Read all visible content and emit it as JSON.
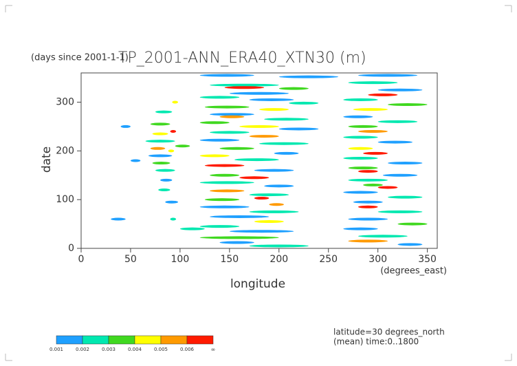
{
  "chart_data": {
    "type": "contourf",
    "title": "TP_2001-ANN_ERA40_XTN30 (m)",
    "time_origin": "(days since 2001-1-1)",
    "xlabel": "longitude",
    "ylabel": "date",
    "x_unit": "(degrees_east)",
    "xlim": [
      0,
      360
    ],
    "ylim": [
      0,
      360
    ],
    "xticks": [
      0,
      50,
      100,
      150,
      200,
      250,
      300,
      350
    ],
    "yticks": [
      0,
      100,
      200,
      300
    ],
    "levels": [
      0.001,
      0.002,
      0.003,
      0.004,
      0.005,
      0.006
    ],
    "level_top_label": "∞",
    "colors": [
      "#1fa0ff",
      "#00e8b0",
      "#40d820",
      "#ffff00",
      "#ff9a00",
      "#ff1a00"
    ],
    "notes": [
      "latitude=30 degrees_north",
      "(mean) time:0..1800"
    ],
    "streaks": [
      [
        120,
        175,
        355,
        0.001
      ],
      [
        200,
        260,
        352,
        0.001
      ],
      [
        130,
        200,
        335,
        0.002
      ],
      [
        145,
        185,
        330,
        0.006
      ],
      [
        200,
        230,
        328,
        0.003
      ],
      [
        150,
        210,
        318,
        0.001
      ],
      [
        120,
        160,
        310,
        0.002
      ],
      [
        170,
        215,
        305,
        0.001
      ],
      [
        210,
        240,
        298,
        0.002
      ],
      [
        125,
        170,
        290,
        0.003
      ],
      [
        180,
        210,
        285,
        0.004
      ],
      [
        130,
        175,
        275,
        0.001
      ],
      [
        140,
        165,
        270,
        0.005
      ],
      [
        185,
        230,
        265,
        0.002
      ],
      [
        120,
        150,
        258,
        0.003
      ],
      [
        160,
        200,
        250,
        0.004
      ],
      [
        200,
        240,
        245,
        0.001
      ],
      [
        130,
        170,
        238,
        0.002
      ],
      [
        170,
        200,
        230,
        0.005
      ],
      [
        120,
        160,
        222,
        0.001
      ],
      [
        180,
        230,
        215,
        0.002
      ],
      [
        140,
        175,
        205,
        0.003
      ],
      [
        195,
        220,
        195,
        0.001
      ],
      [
        120,
        150,
        190,
        0.004
      ],
      [
        155,
        200,
        182,
        0.002
      ],
      [
        125,
        165,
        170,
        0.006
      ],
      [
        175,
        215,
        160,
        0.001
      ],
      [
        130,
        160,
        150,
        0.003
      ],
      [
        160,
        190,
        145,
        0.006
      ],
      [
        120,
        175,
        135,
        0.002
      ],
      [
        185,
        215,
        128,
        0.001
      ],
      [
        130,
        165,
        118,
        0.005
      ],
      [
        170,
        210,
        110,
        0.002
      ],
      [
        125,
        160,
        100,
        0.003
      ],
      [
        175,
        190,
        103,
        0.006
      ],
      [
        190,
        205,
        90,
        0.005
      ],
      [
        120,
        170,
        85,
        0.001
      ],
      [
        170,
        220,
        75,
        0.002
      ],
      [
        130,
        190,
        65,
        0.001
      ],
      [
        175,
        205,
        55,
        0.004
      ],
      [
        120,
        160,
        45,
        0.002
      ],
      [
        150,
        215,
        35,
        0.001
      ],
      [
        120,
        200,
        22,
        0.003
      ],
      [
        140,
        175,
        12,
        0.001
      ],
      [
        170,
        230,
        5,
        0.002
      ],
      [
        75,
        92,
        280,
        0.002
      ],
      [
        70,
        90,
        255,
        0.003
      ],
      [
        72,
        88,
        235,
        0.004
      ],
      [
        65,
        95,
        220,
        0.002
      ],
      [
        70,
        85,
        205,
        0.005
      ],
      [
        68,
        92,
        190,
        0.001
      ],
      [
        72,
        90,
        175,
        0.003
      ],
      [
        75,
        95,
        160,
        0.002
      ],
      [
        80,
        92,
        140,
        0.001
      ],
      [
        78,
        90,
        120,
        0.002
      ],
      [
        85,
        98,
        95,
        0.001
      ],
      [
        90,
        96,
        60,
        0.002
      ],
      [
        92,
        98,
        300,
        0.004
      ],
      [
        90,
        96,
        240,
        0.006
      ],
      [
        88,
        94,
        200,
        0.004
      ],
      [
        40,
        50,
        250,
        0.001
      ],
      [
        50,
        60,
        180,
        0.001
      ],
      [
        30,
        45,
        60,
        0.001
      ],
      [
        100,
        125,
        40,
        0.002
      ],
      [
        95,
        110,
        210,
        0.003
      ],
      [
        280,
        340,
        355,
        0.001
      ],
      [
        270,
        320,
        340,
        0.002
      ],
      [
        300,
        345,
        325,
        0.001
      ],
      [
        290,
        320,
        315,
        0.006
      ],
      [
        265,
        300,
        305,
        0.002
      ],
      [
        310,
        350,
        295,
        0.003
      ],
      [
        275,
        310,
        285,
        0.004
      ],
      [
        265,
        295,
        270,
        0.001
      ],
      [
        300,
        340,
        260,
        0.002
      ],
      [
        270,
        300,
        250,
        0.003
      ],
      [
        280,
        310,
        240,
        0.005
      ],
      [
        265,
        300,
        228,
        0.002
      ],
      [
        300,
        335,
        218,
        0.001
      ],
      [
        270,
        295,
        205,
        0.004
      ],
      [
        285,
        310,
        195,
        0.006
      ],
      [
        265,
        300,
        185,
        0.002
      ],
      [
        310,
        345,
        175,
        0.001
      ],
      [
        270,
        300,
        165,
        0.003
      ],
      [
        280,
        300,
        158,
        0.006
      ],
      [
        305,
        340,
        150,
        0.001
      ],
      [
        270,
        310,
        140,
        0.002
      ],
      [
        285,
        305,
        130,
        0.003
      ],
      [
        300,
        320,
        125,
        0.006
      ],
      [
        265,
        300,
        115,
        0.001
      ],
      [
        310,
        345,
        105,
        0.002
      ],
      [
        275,
        305,
        95,
        0.001
      ],
      [
        280,
        300,
        85,
        0.006
      ],
      [
        300,
        345,
        75,
        0.002
      ],
      [
        270,
        310,
        60,
        0.001
      ],
      [
        320,
        350,
        50,
        0.003
      ],
      [
        265,
        300,
        40,
        0.001
      ],
      [
        280,
        330,
        25,
        0.002
      ],
      [
        270,
        310,
        15,
        0.005
      ],
      [
        320,
        345,
        8,
        0.001
      ]
    ]
  }
}
